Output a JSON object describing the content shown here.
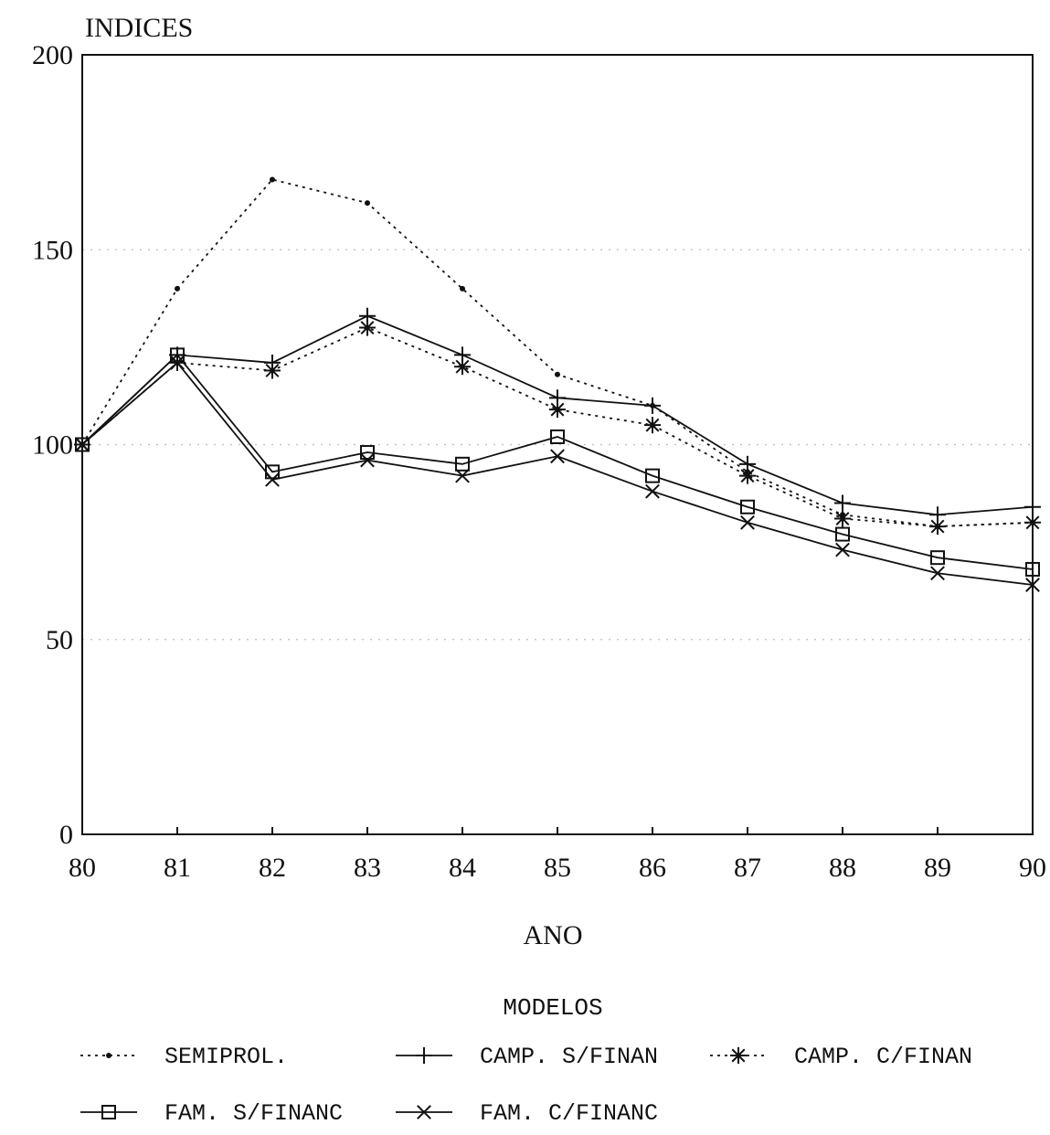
{
  "chart_data": {
    "type": "line",
    "ylabel": "INDICES",
    "xlabel": "ANO",
    "x": [
      80,
      81,
      82,
      83,
      84,
      85,
      86,
      87,
      88,
      89,
      90
    ],
    "xticks": [
      "80",
      "81",
      "82",
      "83",
      "84",
      "85",
      "86",
      "87",
      "88",
      "89",
      "90"
    ],
    "yticks": [
      "0",
      "50",
      "100",
      "150",
      "200"
    ],
    "xlim": [
      80,
      90
    ],
    "ylim": [
      0,
      200
    ],
    "grid": "dotted horizontal",
    "legend": {
      "title": "MODELOS",
      "position": "bottom"
    },
    "series": [
      {
        "name": "SEMIPROL.",
        "marker": "dot",
        "line": "dotted",
        "values": [
          100,
          140,
          168,
          162,
          140,
          118,
          110,
          93,
          82,
          79,
          80
        ]
      },
      {
        "name": "CAMP. S/FINAN",
        "marker": "plus",
        "line": "solid",
        "values": [
          100,
          123,
          121,
          133,
          123,
          112,
          110,
          95,
          85,
          82,
          84
        ]
      },
      {
        "name": "CAMP. C/FINAN",
        "marker": "star",
        "line": "dotted",
        "values": [
          100,
          121,
          119,
          130,
          120,
          109,
          105,
          92,
          81,
          79,
          80
        ]
      },
      {
        "name": "FAM. S/FINANC",
        "marker": "square",
        "line": "solid",
        "values": [
          100,
          123,
          93,
          98,
          95,
          102,
          92,
          84,
          77,
          71,
          68
        ]
      },
      {
        "name": "FAM. C/FINANC",
        "marker": "x",
        "line": "solid",
        "values": [
          100,
          121,
          91,
          96,
          92,
          97,
          88,
          80,
          73,
          67,
          64
        ]
      }
    ]
  }
}
